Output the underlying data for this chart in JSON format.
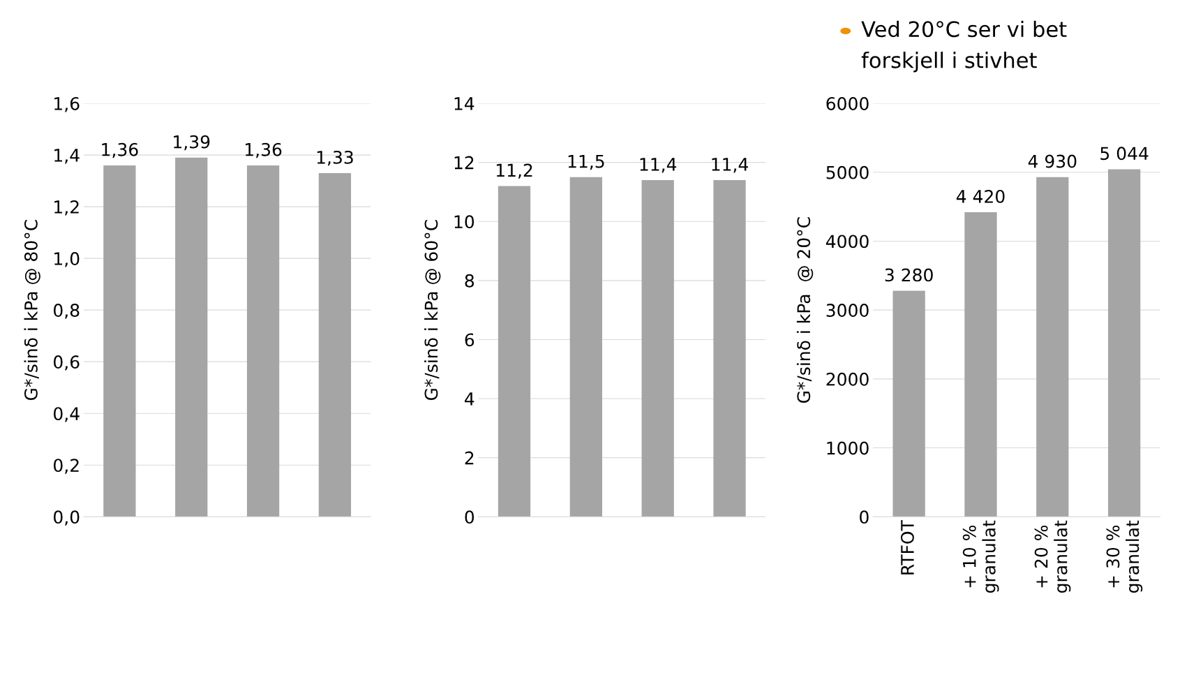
{
  "chart_data": [
    {
      "type": "bar",
      "ylabel": "G*/sinδ i kPa @ 80°C",
      "categories": [
        null,
        null,
        null,
        null
      ],
      "values": [
        1.36,
        1.39,
        1.36,
        1.33
      ],
      "value_labels": [
        "1,36",
        "1,39",
        "1,36",
        "1,33"
      ],
      "color": "#a5a5a5",
      "ylim": [
        0,
        1.6
      ],
      "yticks": [
        {
          "value": 0,
          "label": "0,0"
        },
        {
          "value": 0.2,
          "label": "0,2"
        },
        {
          "value": 0.4,
          "label": "0,4"
        },
        {
          "value": 0.6,
          "label": "0,6"
        },
        {
          "value": 0.8,
          "label": "0,8"
        },
        {
          "value": 1.0,
          "label": "1,0"
        },
        {
          "value": 1.2,
          "label": "1,2"
        },
        {
          "value": 1.4,
          "label": "1,4"
        },
        {
          "value": 1.6,
          "label": "1,6"
        }
      ],
      "grid": "y"
    },
    {
      "type": "bar",
      "ylabel": "G*/sinδ i kPa @ 60°C",
      "categories": [
        null,
        null,
        null,
        null
      ],
      "values": [
        11.2,
        11.5,
        11.4,
        11.4
      ],
      "value_labels": [
        "11,2",
        "11,5",
        "11,4",
        "11,4"
      ],
      "color": "#a5a5a5",
      "ylim": [
        0,
        14
      ],
      "yticks": [
        0,
        2,
        4,
        6,
        8,
        10,
        12,
        14
      ],
      "grid": "y"
    },
    {
      "type": "bar",
      "ylabel": "G*/sinδ i kPa  @ 20°C",
      "categories": [
        "RTFOT",
        "+ 10 %\ngranulat",
        "+ 20 %\ngranulat",
        "+ 30 %\ngranulat"
      ],
      "values": [
        3280,
        4420,
        4930,
        5044
      ],
      "value_labels": [
        "3 280",
        "4 420",
        "4 930",
        "5 044"
      ],
      "color": "#a5a5a5",
      "ylim": [
        0,
        6000
      ],
      "yticks": [
        0,
        1000,
        2000,
        3000,
        4000,
        5000,
        6000
      ],
      "grid": "y"
    },
    {
      "type": "other",
      "annotations": [
        "Ved 20°C ser vi bet",
        "forskjell i stivhet"
      ],
      "color": "#f0900a"
    }
  ]
}
